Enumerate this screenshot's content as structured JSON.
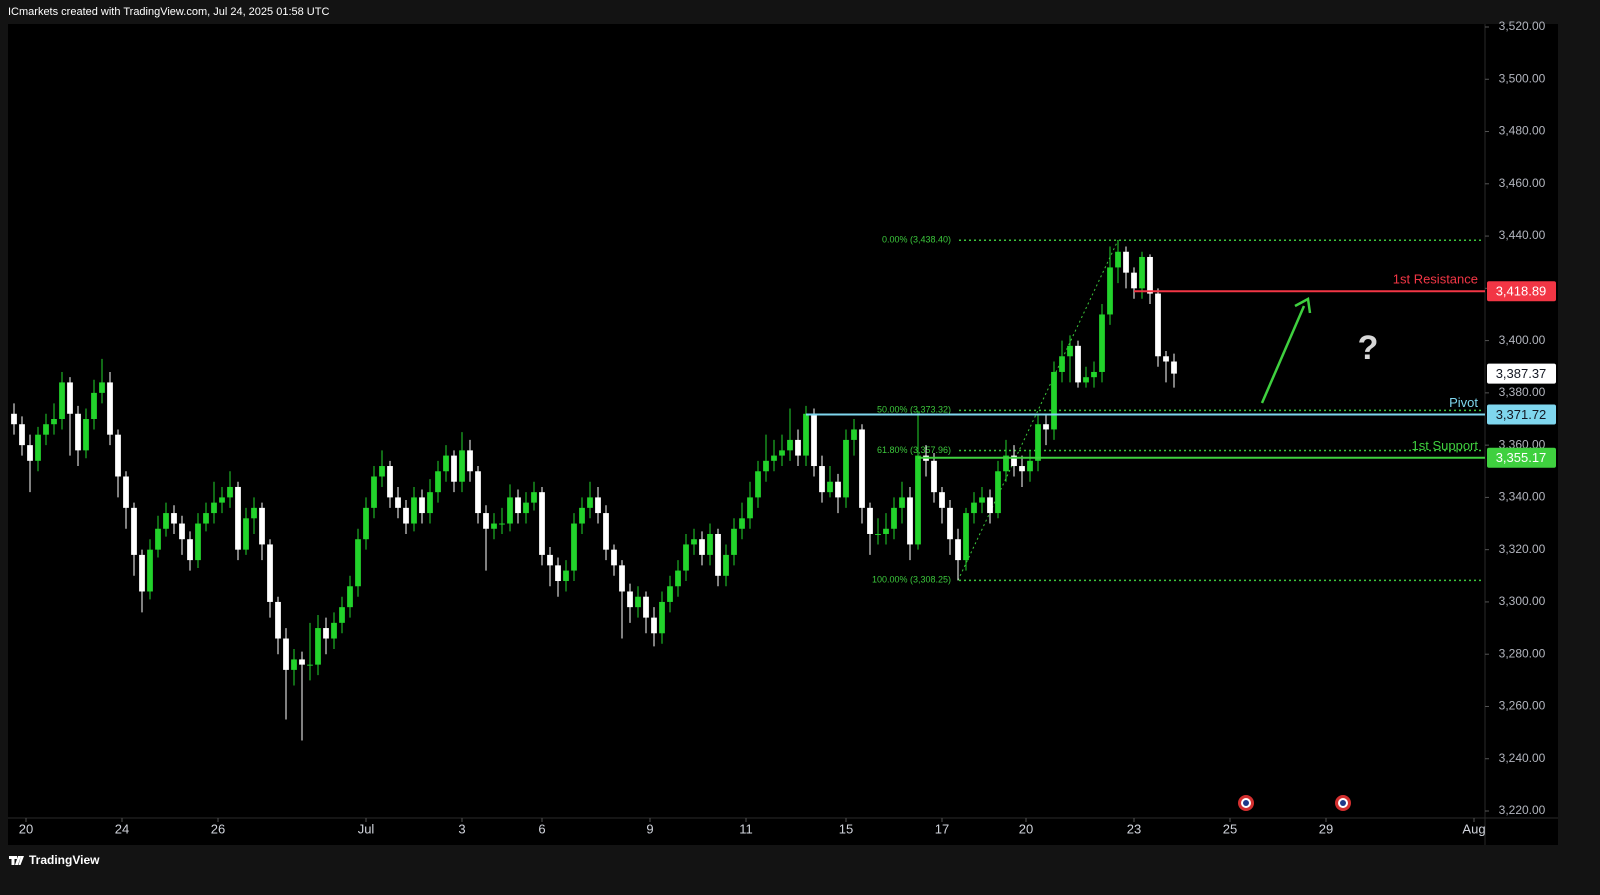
{
  "header": "ICmarkets created with TradingView.com, Jul 24, 2025 01:58 UTC",
  "footer": "TradingView",
  "chart_data": {
    "type": "candlestick",
    "open": [
      3372,
      3368,
      3360,
      3354,
      3364,
      3368,
      3370,
      3384,
      3372,
      3358,
      3370,
      3380,
      3384,
      3364,
      3348,
      3336,
      3318,
      3304,
      3320,
      3328,
      3334,
      3330,
      3324,
      3316,
      3330,
      3334,
      3338,
      3340,
      3344,
      3320,
      3332,
      3336,
      3322,
      3300,
      3286,
      3274,
      3278,
      3276,
      3276,
      3290,
      3286,
      3292,
      3298,
      3306,
      3324,
      3336,
      3348,
      3352,
      3340,
      3336,
      3330,
      3340,
      3334,
      3342,
      3350,
      3356,
      3346,
      3358,
      3350,
      3334,
      3328,
      3330,
      3330,
      3340,
      3334,
      3338,
      3342,
      3318,
      3314,
      3308,
      3312,
      3330,
      3336,
      3340,
      3334,
      3320,
      3314,
      3304,
      3298,
      3302,
      3294,
      3288,
      3300,
      3306,
      3312,
      3322,
      3324,
      3318,
      3326,
      3310,
      3318,
      3328,
      3332,
      3340,
      3350,
      3354,
      3356,
      3358,
      3362,
      3356,
      3372,
      3352,
      3342,
      3346,
      3340,
      3362,
      3366,
      3336,
      3326,
      3326,
      3328,
      3336,
      3340,
      3322,
      3356,
      3354,
      3342,
      3336,
      3324,
      3316,
      3334,
      3338,
      3340,
      3334,
      3350,
      3356,
      3352,
      3350,
      3354,
      3368,
      3366,
      3388,
      3394,
      3398,
      3384,
      3386,
      3388,
      3410,
      3428,
      3434,
      3426,
      3420,
      3432,
      3418,
      3394,
      3392
    ],
    "high": [
      3376,
      3371,
      3364,
      3367,
      3372,
      3376,
      3388,
      3386,
      3375,
      3374,
      3385,
      3393,
      3388,
      3366,
      3350,
      3338,
      3320,
      3324,
      3333,
      3338,
      3337,
      3333,
      3327,
      3334,
      3338,
      3346,
      3344,
      3350,
      3346,
      3336,
      3340,
      3338,
      3324,
      3302,
      3290,
      3282,
      3281,
      3292,
      3295,
      3294,
      3296,
      3302,
      3310,
      3328,
      3340,
      3352,
      3358,
      3354,
      3344,
      3339,
      3344,
      3343,
      3347,
      3354,
      3360,
      3358,
      3365,
      3362,
      3352,
      3337,
      3334,
      3336,
      3345,
      3343,
      3342,
      3346,
      3344,
      3321,
      3317,
      3316,
      3334,
      3340,
      3346,
      3344,
      3337,
      3322,
      3316,
      3307,
      3306,
      3304,
      3298,
      3304,
      3310,
      3316,
      3326,
      3328,
      3327,
      3330,
      3328,
      3322,
      3332,
      3338,
      3346,
      3354,
      3364,
      3362,
      3364,
      3374,
      3366,
      3375,
      3374,
      3356,
      3352,
      3349,
      3366,
      3370,
      3368,
      3338,
      3332,
      3334,
      3340,
      3346,
      3344,
      3373,
      3360,
      3357,
      3344,
      3339,
      3328,
      3336,
      3342,
      3344,
      3343,
      3354,
      3362,
      3360,
      3356,
      3358,
      3372,
      3372,
      3392,
      3400,
      3402,
      3400,
      3390,
      3392,
      3414,
      3436,
      3438.4,
      3436,
      3428,
      3434,
      3433,
      3420,
      3396,
      3395
    ],
    "low": [
      3364,
      3356,
      3342,
      3350,
      3360,
      3364,
      3366,
      3356,
      3352,
      3355,
      3366,
      3376,
      3360,
      3340,
      3328,
      3310,
      3296,
      3301,
      3317,
      3325,
      3326,
      3318,
      3312,
      3313,
      3327,
      3330,
      3334,
      3336,
      3316,
      3318,
      3326,
      3316,
      3294,
      3280,
      3255,
      3268,
      3247,
      3270,
      3272,
      3280,
      3282,
      3288,
      3294,
      3302,
      3320,
      3332,
      3344,
      3336,
      3332,
      3326,
      3327,
      3330,
      3330,
      3338,
      3346,
      3342,
      3342,
      3346,
      3330,
      3312,
      3324,
      3326,
      3327,
      3330,
      3330,
      3335,
      3314,
      3306,
      3302,
      3304,
      3308,
      3326,
      3332,
      3330,
      3316,
      3310,
      3286,
      3292,
      3294,
      3288,
      3283,
      3284,
      3296,
      3302,
      3308,
      3318,
      3314,
      3314,
      3306,
      3306,
      3314,
      3324,
      3328,
      3336,
      3346,
      3350,
      3352,
      3354,
      3352,
      3352,
      3348,
      3338,
      3340,
      3334,
      3336,
      3356,
      3330,
      3318,
      3322,
      3322,
      3324,
      3330,
      3316,
      3320,
      3348,
      3338,
      3330,
      3318,
      3308.25,
      3312,
      3330,
      3334,
      3330,
      3332,
      3346,
      3348,
      3344,
      3346,
      3350,
      3360,
      3362,
      3384,
      3384,
      3382,
      3382,
      3382,
      3384,
      3406,
      3422,
      3420,
      3416,
      3416,
      3414,
      3390,
      3384,
      3382
    ],
    "close": [
      3368,
      3360,
      3354,
      3364,
      3368,
      3370,
      3384,
      3372,
      3358,
      3370,
      3380,
      3384,
      3364,
      3348,
      3336,
      3318,
      3304,
      3320,
      3328,
      3334,
      3330,
      3324,
      3316,
      3330,
      3334,
      3338,
      3340,
      3344,
      3320,
      3332,
      3336,
      3322,
      3300,
      3286,
      3274,
      3278,
      3276,
      3276,
      3290,
      3286,
      3292,
      3298,
      3306,
      3324,
      3336,
      3348,
      3352,
      3340,
      3336,
      3330,
      3340,
      3334,
      3342,
      3350,
      3356,
      3346,
      3358,
      3350,
      3334,
      3328,
      3330,
      3330,
      3340,
      3334,
      3338,
      3342,
      3318,
      3314,
      3308,
      3312,
      3330,
      3336,
      3340,
      3334,
      3320,
      3314,
      3304,
      3298,
      3302,
      3294,
      3288,
      3300,
      3306,
      3312,
      3322,
      3324,
      3318,
      3326,
      3310,
      3318,
      3328,
      3332,
      3340,
      3350,
      3354,
      3356,
      3358,
      3362,
      3356,
      3372,
      3352,
      3342,
      3346,
      3340,
      3362,
      3366,
      3336,
      3326,
      3326,
      3328,
      3336,
      3340,
      3322,
      3356,
      3354,
      3342,
      3336,
      3324,
      3316,
      3334,
      3338,
      3340,
      3334,
      3350,
      3356,
      3352,
      3350,
      3354,
      3368,
      3366,
      3388,
      3394,
      3398,
      3384,
      3386,
      3388,
      3410,
      3428,
      3434,
      3426,
      3420,
      3432,
      3418,
      3394,
      3392,
      3387.37
    ],
    "up_color": "#22d32b",
    "down_color": "#ffffff",
    "xlim": [
      -0.5,
      183.875
    ],
    "xticks": [
      {
        "value": 1.5,
        "label": "20"
      },
      {
        "value": 13.5,
        "label": "24"
      },
      {
        "value": 25.5,
        "label": "26"
      },
      {
        "value": 44,
        "label": "Jul"
      },
      {
        "value": 56,
        "label": "3"
      },
      {
        "value": 66,
        "label": "6"
      },
      {
        "value": 79.5,
        "label": "9"
      },
      {
        "value": 91.5,
        "label": "11"
      },
      {
        "value": 104,
        "label": "15"
      },
      {
        "value": 116,
        "label": "17"
      },
      {
        "value": 126.5,
        "label": "20"
      },
      {
        "value": 140,
        "label": "23"
      },
      {
        "value": 152,
        "label": "25"
      },
      {
        "value": 164,
        "label": "29"
      },
      {
        "value": 182.5,
        "label": "Aug"
      }
    ],
    "ylim": [
      3220,
      3520
    ],
    "yticks": [
      {
        "value": 3220,
        "label": "3,220.00"
      },
      {
        "value": 3240,
        "label": "3,240.00"
      },
      {
        "value": 3260,
        "label": "3,260.00"
      },
      {
        "value": 3280,
        "label": "3,280.00"
      },
      {
        "value": 3300,
        "label": "3,300.00"
      },
      {
        "value": 3320,
        "label": "3,320.00"
      },
      {
        "value": 3340,
        "label": "3,340.00"
      },
      {
        "value": 3360,
        "label": "3,360.00"
      },
      {
        "value": 3380,
        "label": "3,380.00"
      },
      {
        "value": 3400,
        "label": "3,400.00"
      },
      {
        "value": 3420,
        "label": "3,420.00"
      },
      {
        "value": 3440,
        "label": "3,440.00"
      },
      {
        "value": 3460,
        "label": "3,460.00"
      },
      {
        "value": 3480,
        "label": "3,480.00"
      },
      {
        "value": 3500,
        "label": "3,500.00"
      },
      {
        "value": 3520,
        "label": "3,520.00"
      }
    ],
    "grid": false,
    "levels": [
      {
        "name": "1st Resistance",
        "value": 3418.89,
        "label": "3,418.89",
        "color": "#f23645"
      },
      {
        "name": "Pivot",
        "value": 3371.72,
        "label": "3,371.72",
        "color": "#7fd6ee"
      },
      {
        "name": "1st Support",
        "value": 3355.17,
        "label": "3,355.17",
        "color": "#3fd03f"
      }
    ],
    "fib_color": "#3cc83c",
    "fib_levels": [
      {
        "value": 3438.4,
        "label": "0.00% (3,438.40)"
      },
      {
        "value": 3373.32,
        "label": "50.00% (3,373.32)"
      },
      {
        "value": 3357.96,
        "label": "61.80% (3,357.96)"
      },
      {
        "value": 3308.25,
        "label": "100.00% (3,308.25)"
      }
    ],
    "last_price": {
      "value": 3387.37,
      "label": "3,387.37"
    },
    "annotation": "?"
  }
}
